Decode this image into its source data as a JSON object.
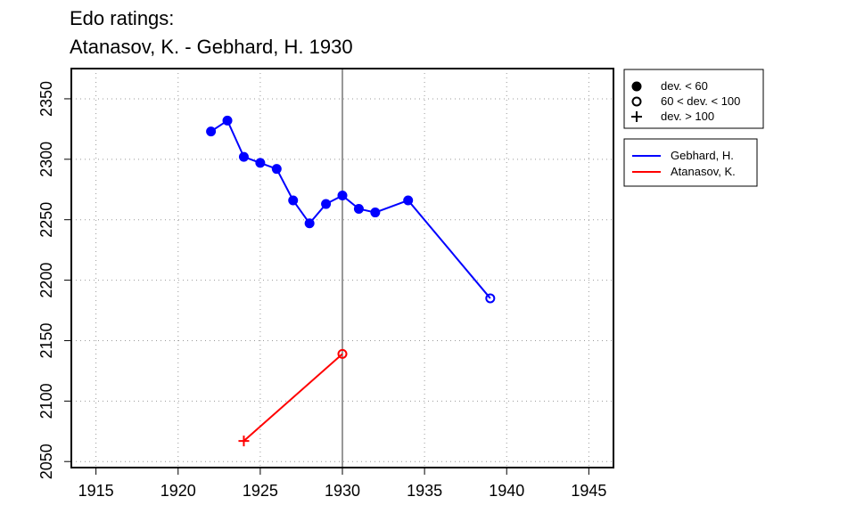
{
  "chart_data": {
    "type": "line",
    "title_line1": "Edo ratings:",
    "title_line2": "Atanasov, K. - Gebhard, H. 1930",
    "xlabel": "",
    "ylabel": "",
    "xlim": [
      1913.5,
      1946.5
    ],
    "ylim": [
      2045,
      2375
    ],
    "x_ticks": [
      1915,
      1920,
      1925,
      1930,
      1935,
      1940,
      1945
    ],
    "y_ticks": [
      2050,
      2100,
      2150,
      2200,
      2250,
      2300,
      2350
    ],
    "grid": true,
    "reference_line_x": 1930,
    "series": [
      {
        "name": "Gebhard, H.",
        "color": "#0000ff",
        "points": [
          {
            "x": 1922,
            "y": 2323,
            "dev": "low"
          },
          {
            "x": 1923,
            "y": 2332,
            "dev": "low"
          },
          {
            "x": 1924,
            "y": 2302,
            "dev": "low"
          },
          {
            "x": 1925,
            "y": 2297,
            "dev": "low"
          },
          {
            "x": 1926,
            "y": 2292,
            "dev": "low"
          },
          {
            "x": 1927,
            "y": 2266,
            "dev": "low"
          },
          {
            "x": 1928,
            "y": 2247,
            "dev": "low"
          },
          {
            "x": 1929,
            "y": 2263,
            "dev": "low"
          },
          {
            "x": 1930,
            "y": 2270,
            "dev": "low"
          },
          {
            "x": 1931,
            "y": 2259,
            "dev": "low"
          },
          {
            "x": 1932,
            "y": 2256,
            "dev": "low"
          },
          {
            "x": 1934,
            "y": 2266,
            "dev": "low"
          },
          {
            "x": 1939,
            "y": 2185,
            "dev": "mid"
          }
        ]
      },
      {
        "name": "Atanasov, K.",
        "color": "#ff0000",
        "points": [
          {
            "x": 1924,
            "y": 2067,
            "dev": "high"
          },
          {
            "x": 1930,
            "y": 2139,
            "dev": "mid"
          }
        ]
      }
    ],
    "legend_symbols": [
      {
        "symbol": "filled-circle",
        "label": "dev. < 60"
      },
      {
        "symbol": "open-circle",
        "label": "60 < dev. < 100"
      },
      {
        "symbol": "plus",
        "label": "dev. > 100"
      }
    ],
    "legend_placement": "right-outside"
  }
}
